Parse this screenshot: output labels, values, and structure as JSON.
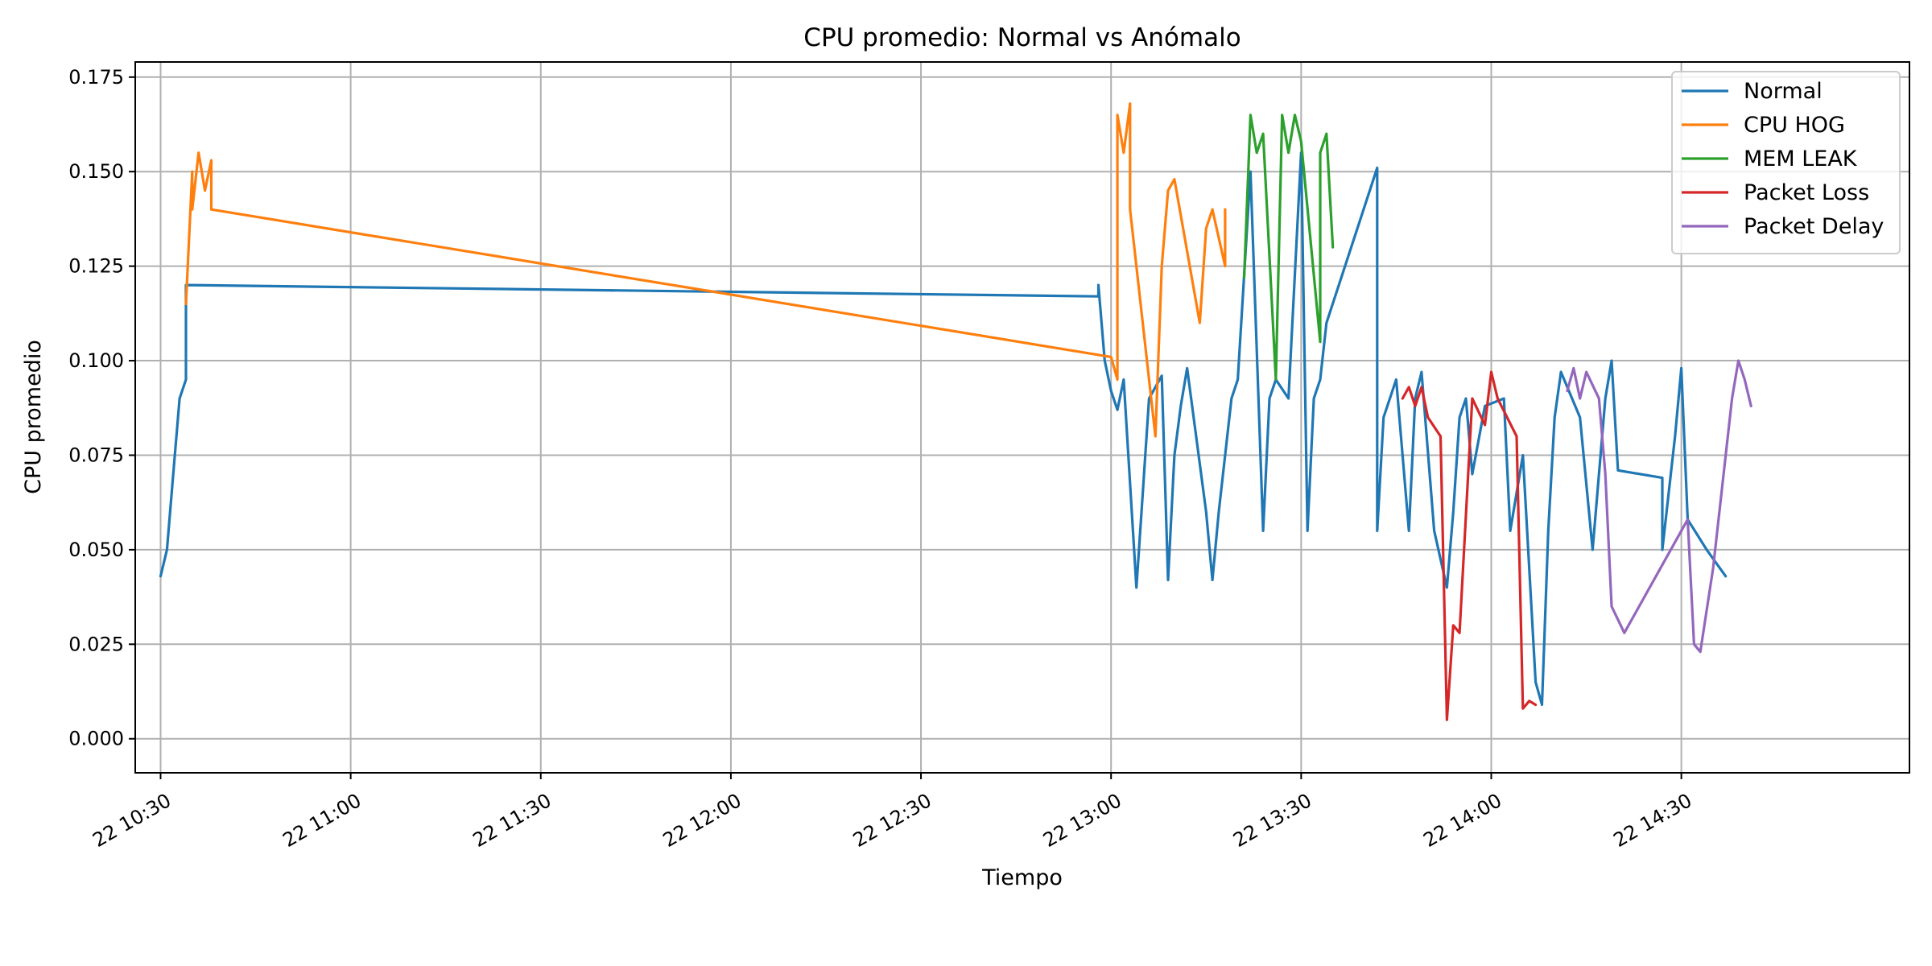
{
  "chart_data": {
    "type": "line",
    "title": "CPU promedio: Normal vs Anómalo",
    "xlabel": "Tiempo",
    "ylabel": "CPU promedio",
    "x_unit": "time (day 22, HH:MM)",
    "xlim": [
      "22 10:26",
      "22 15:06"
    ],
    "ylim": [
      -0.009,
      0.179
    ],
    "x_ticks": [
      {
        "t": "22 10:30",
        "label": "22 10:30"
      },
      {
        "t": "22 11:00",
        "label": "22 11:00"
      },
      {
        "t": "22 11:30",
        "label": "22 11:30"
      },
      {
        "t": "22 12:00",
        "label": "22 12:00"
      },
      {
        "t": "22 12:30",
        "label": "22 12:30"
      },
      {
        "t": "22 13:00",
        "label": "22 13:00"
      },
      {
        "t": "22 13:30",
        "label": "22 13:30"
      },
      {
        "t": "22 14:00",
        "label": "22 14:00"
      },
      {
        "t": "22 14:30",
        "label": "22 14:30"
      }
    ],
    "y_ticks": [
      {
        "v": 0.0,
        "label": "0.000"
      },
      {
        "v": 0.025,
        "label": "0.025"
      },
      {
        "v": 0.05,
        "label": "0.050"
      },
      {
        "v": 0.075,
        "label": "0.075"
      },
      {
        "v": 0.1,
        "label": "0.100"
      },
      {
        "v": 0.125,
        "label": "0.125"
      },
      {
        "v": 0.15,
        "label": "0.150"
      },
      {
        "v": 0.175,
        "label": "0.175"
      }
    ],
    "grid": true,
    "legend_position": "top-right",
    "series": [
      {
        "name": "Normal",
        "color": "#1f77b4",
        "points": [
          [
            "22 10:30",
            0.043
          ],
          [
            "22 10:31",
            0.05
          ],
          [
            "22 10:32",
            0.07
          ],
          [
            "22 10:33",
            0.09
          ],
          [
            "22 10:34",
            0.095
          ],
          [
            "22 10:34",
            0.12
          ],
          [
            "22 12:58",
            0.117
          ],
          [
            "22 12:58",
            0.12
          ],
          [
            "22 12:59",
            0.1
          ],
          [
            "22 13:00",
            0.092
          ],
          [
            "22 13:01",
            0.087
          ],
          [
            "22 13:02",
            0.095
          ],
          [
            "22 13:04",
            0.04
          ],
          [
            "22 13:05",
            0.065
          ],
          [
            "22 13:06",
            0.09
          ],
          [
            "22 13:08",
            0.096
          ],
          [
            "22 13:09",
            0.042
          ],
          [
            "22 13:10",
            0.075
          ],
          [
            "22 13:11",
            0.088
          ],
          [
            "22 13:12",
            0.098
          ],
          [
            "22 13:15",
            0.06
          ],
          [
            "22 13:16",
            0.042
          ],
          [
            "22 13:17",
            0.06
          ],
          [
            "22 13:19",
            0.09
          ],
          [
            "22 13:20",
            0.095
          ],
          [
            "22 13:22",
            0.15
          ],
          [
            "22 13:24",
            0.055
          ],
          [
            "22 13:25",
            0.09
          ],
          [
            "22 13:26",
            0.095
          ],
          [
            "22 13:28",
            0.09
          ],
          [
            "22 13:30",
            0.155
          ],
          [
            "22 13:31",
            0.055
          ],
          [
            "22 13:32",
            0.09
          ],
          [
            "22 13:33",
            0.095
          ],
          [
            "22 13:34",
            0.11
          ],
          [
            "22 13:42",
            0.151
          ],
          [
            "22 13:42",
            0.055
          ],
          [
            "22 13:43",
            0.085
          ],
          [
            "22 13:45",
            0.095
          ],
          [
            "22 13:47",
            0.055
          ],
          [
            "22 13:48",
            0.09
          ],
          [
            "22 13:49",
            0.097
          ],
          [
            "22 13:51",
            0.055
          ],
          [
            "22 13:53",
            0.04
          ],
          [
            "22 13:54",
            0.06
          ],
          [
            "22 13:55",
            0.085
          ],
          [
            "22 13:56",
            0.09
          ],
          [
            "22 13:57",
            0.07
          ],
          [
            "22 13:59",
            0.088
          ],
          [
            "22 14:02",
            0.09
          ],
          [
            "22 14:03",
            0.055
          ],
          [
            "22 14:05",
            0.075
          ],
          [
            "22 14:07",
            0.015
          ],
          [
            "22 14:08",
            0.009
          ],
          [
            "22 14:09",
            0.055
          ],
          [
            "22 14:10",
            0.085
          ],
          [
            "22 14:11",
            0.097
          ],
          [
            "22 14:14",
            0.085
          ],
          [
            "22 14:16",
            0.05
          ],
          [
            "22 14:18",
            0.09
          ],
          [
            "22 14:19",
            0.1
          ],
          [
            "22 14:20",
            0.071
          ],
          [
            "22 14:27",
            0.069
          ],
          [
            "22 14:27",
            0.05
          ],
          [
            "22 14:29",
            0.08
          ],
          [
            "22 14:30",
            0.098
          ],
          [
            "22 14:31",
            0.058
          ],
          [
            "22 14:34",
            0.05
          ],
          [
            "22 14:37",
            0.043
          ]
        ]
      },
      {
        "name": "CPU HOG",
        "color": "#ff7f0e",
        "points": [
          [
            "22 10:34",
            0.115
          ],
          [
            "22 10:35",
            0.15
          ],
          [
            "22 10:35",
            0.14
          ],
          [
            "22 10:36",
            0.155
          ],
          [
            "22 10:37",
            0.145
          ],
          [
            "22 10:38",
            0.153
          ],
          [
            "22 10:38",
            0.14
          ],
          [
            "22 13:00",
            0.101
          ],
          [
            "22 13:01",
            0.095
          ],
          [
            "22 13:01",
            0.165
          ],
          [
            "22 13:02",
            0.155
          ],
          [
            "22 13:03",
            0.168
          ],
          [
            "22 13:03",
            0.14
          ],
          [
            "22 13:07",
            0.08
          ],
          [
            "22 13:08",
            0.125
          ],
          [
            "22 13:09",
            0.145
          ],
          [
            "22 13:10",
            0.148
          ],
          [
            "22 13:14",
            0.11
          ],
          [
            "22 13:15",
            0.135
          ],
          [
            "22 13:16",
            0.14
          ],
          [
            "22 13:18",
            0.125
          ],
          [
            "22 13:18",
            0.14
          ]
        ]
      },
      {
        "name": "MEM LEAK",
        "color": "#2ca02c",
        "points": [
          [
            "22 13:21",
            0.122
          ],
          [
            "22 13:22",
            0.165
          ],
          [
            "22 13:23",
            0.155
          ],
          [
            "22 13:24",
            0.16
          ],
          [
            "22 13:26",
            0.095
          ],
          [
            "22 13:27",
            0.165
          ],
          [
            "22 13:28",
            0.155
          ],
          [
            "22 13:29",
            0.165
          ],
          [
            "22 13:30",
            0.158
          ],
          [
            "22 13:33",
            0.105
          ],
          [
            "22 13:33",
            0.155
          ],
          [
            "22 13:34",
            0.16
          ],
          [
            "22 13:35",
            0.13
          ]
        ]
      },
      {
        "name": "Packet Loss",
        "color": "#d62728",
        "points": [
          [
            "22 13:46",
            0.09
          ],
          [
            "22 13:47",
            0.093
          ],
          [
            "22 13:48",
            0.088
          ],
          [
            "22 13:49",
            0.093
          ],
          [
            "22 13:50",
            0.085
          ],
          [
            "22 13:52",
            0.08
          ],
          [
            "22 13:53",
            0.005
          ],
          [
            "22 13:54",
            0.03
          ],
          [
            "22 13:55",
            0.028
          ],
          [
            "22 13:57",
            0.09
          ],
          [
            "22 13:59",
            0.083
          ],
          [
            "22 14:00",
            0.097
          ],
          [
            "22 14:01",
            0.09
          ],
          [
            "22 14:04",
            0.08
          ],
          [
            "22 14:05",
            0.008
          ],
          [
            "22 14:06",
            0.01
          ],
          [
            "22 14:07",
            0.009
          ]
        ]
      },
      {
        "name": "Packet Delay",
        "color": "#9467bd",
        "points": [
          [
            "22 14:12",
            0.092
          ],
          [
            "22 14:13",
            0.098
          ],
          [
            "22 14:14",
            0.09
          ],
          [
            "22 14:15",
            0.097
          ],
          [
            "22 14:17",
            0.09
          ],
          [
            "22 14:18",
            0.07
          ],
          [
            "22 14:19",
            0.035
          ],
          [
            "22 14:21",
            0.028
          ],
          [
            "22 14:31",
            0.058
          ],
          [
            "22 14:32",
            0.025
          ],
          [
            "22 14:33",
            0.023
          ],
          [
            "22 14:35",
            0.045
          ],
          [
            "22 14:38",
            0.09
          ],
          [
            "22 14:39",
            0.1
          ],
          [
            "22 14:40",
            0.095
          ],
          [
            "22 14:41",
            0.088
          ]
        ]
      }
    ]
  }
}
